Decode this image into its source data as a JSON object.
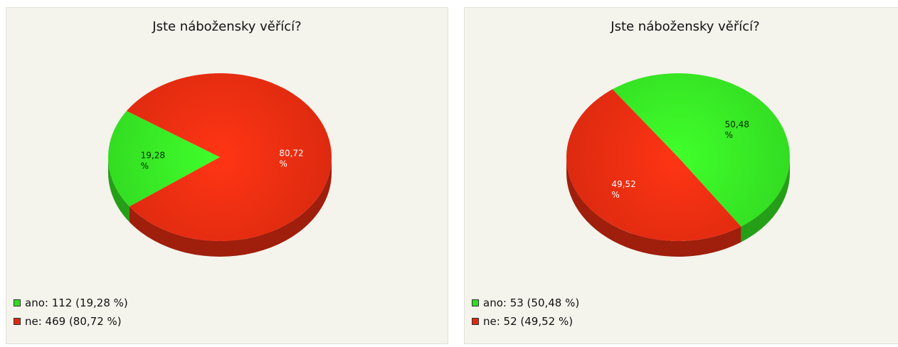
{
  "chart_data": [
    {
      "type": "pie",
      "title": "Jste nábožensky věřící?",
      "slices": [
        {
          "name": "ano",
          "count": 112,
          "percent": 19.28,
          "label": "19,28",
          "percent_sign": "%",
          "legend": "ano: 112 (19,28 %)",
          "color": "#33dd22",
          "label_color": "#0b2a00"
        },
        {
          "name": "ne",
          "count": 469,
          "percent": 80.72,
          "label": "80,72",
          "percent_sign": "%",
          "legend": "ne: 469 (80,72 %)",
          "color": "#dd2a10",
          "label_color": "#ffffff"
        }
      ]
    },
    {
      "type": "pie",
      "title": "Jste nábožensky věřící?",
      "slices": [
        {
          "name": "ano",
          "count": 53,
          "percent": 50.48,
          "label": "50,48",
          "percent_sign": "%",
          "legend": "ano: 53 (50,48 %)",
          "color": "#33dd22",
          "label_color": "#0b2a00"
        },
        {
          "name": "ne",
          "count": 52,
          "percent": 49.52,
          "label": "49,52",
          "percent_sign": "%",
          "legend": "ne: 52 (49,52 %)",
          "color": "#dd2a10",
          "label_color": "#ffffff"
        }
      ]
    }
  ]
}
